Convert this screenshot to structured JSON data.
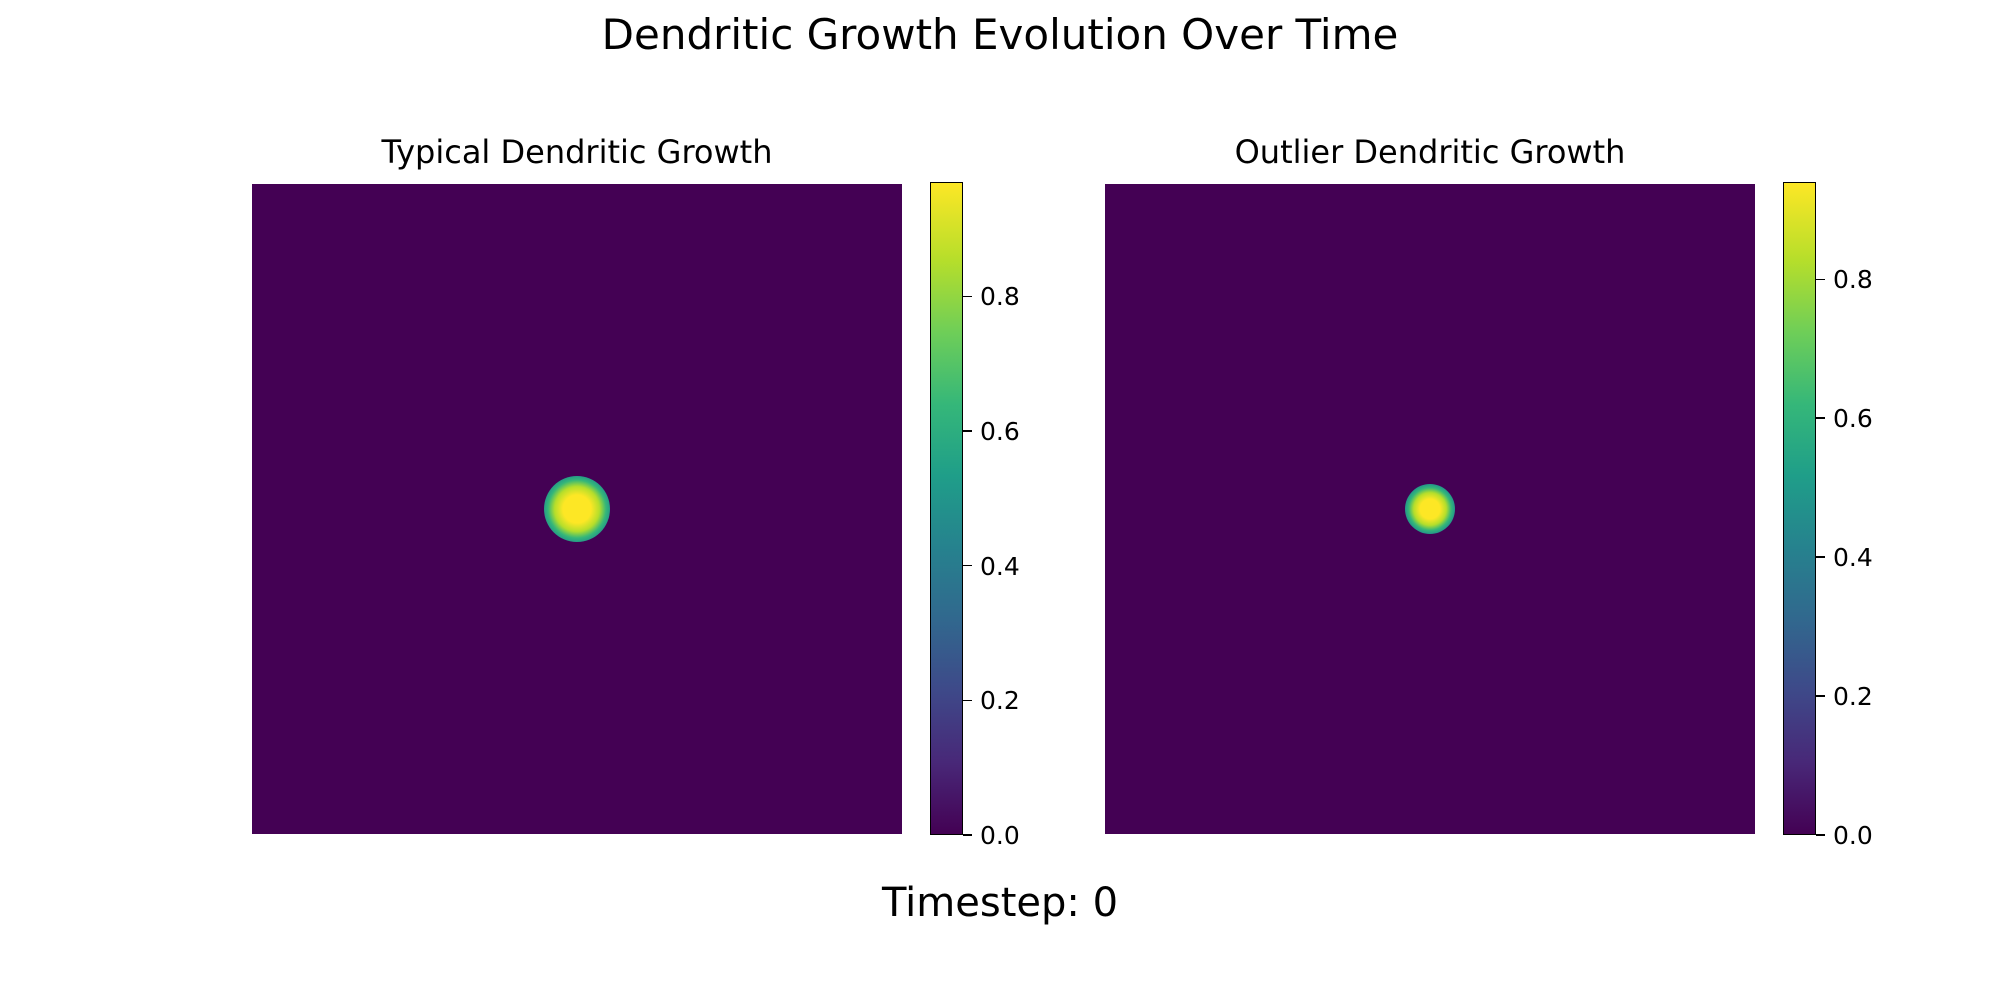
{
  "chart_data": {
    "type": "heatmap",
    "title": "Dendritic Growth Evolution Over Time",
    "footer": "Timestep: 0",
    "panels": [
      {
        "title": "Typical Dendritic Growth",
        "colormap": "viridis",
        "background_value": 0.0,
        "peak_value": 0.97,
        "peak_location": "center",
        "colorbar": {
          "min": 0.0,
          "max": 0.97,
          "ticks": [
            0.0,
            0.2,
            0.4,
            0.6,
            0.8
          ],
          "tick_labels": [
            "0.0",
            "0.2",
            "0.4",
            "0.6",
            "0.8"
          ]
        }
      },
      {
        "title": "Outlier Dendritic Growth",
        "colormap": "viridis",
        "background_value": 0.0,
        "peak_value": 0.94,
        "peak_location": "center",
        "colorbar": {
          "min": 0.0,
          "max": 0.94,
          "ticks": [
            0.0,
            0.2,
            0.4,
            0.6,
            0.8
          ],
          "tick_labels": [
            "0.0",
            "0.2",
            "0.4",
            "0.6",
            "0.8"
          ]
        }
      }
    ]
  }
}
